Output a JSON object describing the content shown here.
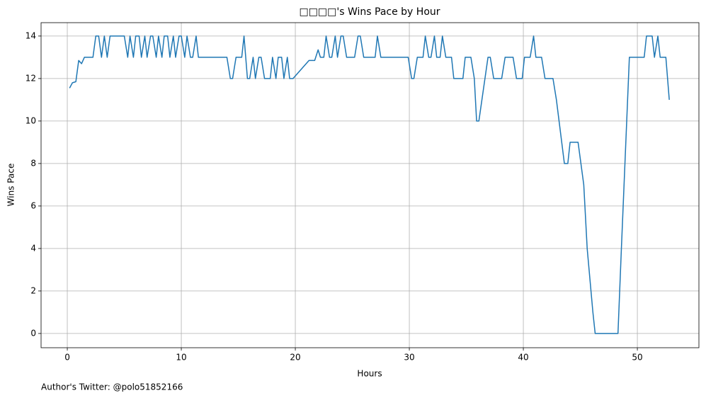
{
  "chart_data": {
    "type": "line",
    "title": "□□□□'s Wins Pace by Hour",
    "x_label": "Hours",
    "y_label": "Wins Pace",
    "footnote": "Author's Twitter: @polo51852166",
    "color": "#1f77b4",
    "grid": true,
    "xlim": [
      -2.3,
      55.4
    ],
    "ylim": [
      -0.67,
      14.63
    ],
    "xticks": [
      0,
      10,
      20,
      30,
      40,
      50
    ],
    "yticks": [
      0,
      2,
      4,
      6,
      8,
      10,
      12,
      14
    ],
    "x": [
      0.2,
      0.45,
      0.75,
      1.0,
      1.25,
      1.5,
      2.25,
      2.5,
      2.75,
      3.0,
      3.25,
      3.5,
      3.75,
      5.0,
      5.3,
      5.5,
      5.8,
      6.0,
      6.3,
      6.5,
      6.8,
      7.0,
      7.3,
      7.5,
      7.8,
      8.0,
      8.3,
      8.5,
      8.8,
      9.0,
      9.3,
      9.5,
      9.8,
      10.0,
      10.3,
      10.5,
      10.8,
      11.0,
      11.3,
      11.5,
      14.0,
      14.3,
      14.5,
      14.8,
      15.3,
      15.5,
      15.8,
      16.0,
      16.3,
      16.5,
      16.8,
      17.0,
      17.3,
      17.8,
      18.0,
      18.3,
      18.5,
      18.8,
      19.0,
      19.3,
      19.5,
      19.8,
      21.2,
      21.7,
      22.0,
      22.2,
      22.5,
      22.7,
      23.0,
      23.2,
      23.5,
      23.7,
      24.0,
      24.2,
      24.5,
      25.2,
      25.5,
      25.7,
      26.0,
      27.0,
      27.2,
      27.5,
      29.9,
      30.2,
      30.4,
      30.7,
      31.2,
      31.4,
      31.7,
      31.9,
      32.2,
      32.4,
      32.7,
      32.9,
      33.2,
      33.7,
      33.9,
      34.7,
      34.9,
      35.4,
      35.7,
      35.9,
      36.1,
      36.9,
      37.1,
      37.4,
      38.1,
      38.4,
      39.1,
      39.4,
      39.9,
      40.1,
      40.6,
      40.9,
      41.1,
      41.6,
      41.9,
      42.6,
      42.9,
      43.6,
      43.9,
      44.1,
      44.8,
      45.3,
      45.6,
      46.1,
      46.3,
      48.1,
      48.3,
      48.6,
      49.3,
      50.6,
      50.8,
      51.3,
      51.5,
      51.8,
      52.0,
      52.5,
      52.8
    ],
    "values": [
      11.55,
      11.8,
      11.85,
      12.85,
      12.7,
      13,
      13,
      14,
      14,
      13,
      14,
      13,
      14,
      14,
      13,
      14,
      13,
      14,
      14,
      13,
      14,
      13,
      14,
      14,
      13,
      14,
      13,
      14,
      14,
      13,
      14,
      13,
      14,
      14,
      13,
      14,
      13,
      13,
      14,
      13,
      13,
      12,
      12,
      13,
      13,
      14,
      12,
      12,
      13,
      12,
      13,
      13,
      12,
      12,
      13,
      12,
      13,
      13,
      12,
      13,
      12,
      12,
      12.85,
      12.85,
      13.35,
      13,
      13,
      14,
      13,
      13,
      14,
      13,
      14,
      14,
      13,
      13,
      14,
      14,
      13,
      13,
      14,
      13,
      13,
      12,
      12,
      13,
      13,
      14,
      13,
      13,
      14,
      13,
      13,
      14,
      13,
      13,
      12,
      12,
      13,
      13,
      12,
      10,
      10,
      13,
      13,
      12,
      12,
      13,
      13,
      12,
      12,
      13,
      13,
      14,
      13,
      13,
      12,
      12,
      11,
      8,
      8,
      9,
      9,
      7,
      4,
      1,
      0,
      0,
      0,
      4,
      13,
      13,
      14,
      14,
      13,
      14,
      13,
      13,
      11
    ]
  }
}
